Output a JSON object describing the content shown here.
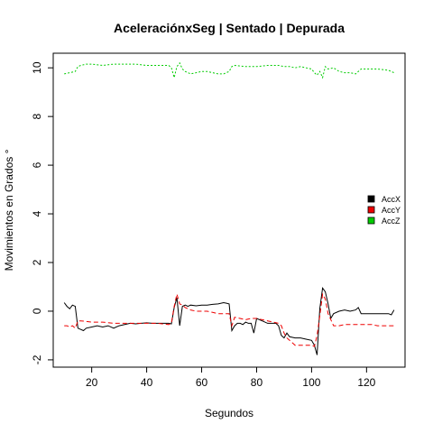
{
  "chart_data": {
    "type": "line",
    "title": "AceleraciónxSeg | Sentado | Depurada",
    "xlabel": "Segundos",
    "ylabel": "Movimientos en Grados °",
    "xlim": [
      6,
      134
    ],
    "ylim": [
      -2.3,
      10.6
    ],
    "xticks": [
      20,
      40,
      60,
      80,
      100,
      120
    ],
    "yticks": [
      -2,
      0,
      2,
      4,
      6,
      8,
      10
    ],
    "grid": false,
    "legend_position": "right",
    "series": [
      {
        "name": "AccX",
        "color": "#000000",
        "dash": "",
        "x": [
          10,
          11,
          12,
          13,
          14,
          15,
          16,
          17,
          18,
          20,
          22,
          24,
          26,
          28,
          30,
          32,
          34,
          36,
          38,
          40,
          42,
          44,
          46,
          48,
          49,
          50,
          51,
          52,
          53,
          54,
          55,
          56,
          58,
          60,
          62,
          64,
          66,
          68,
          69,
          70,
          71,
          72,
          73,
          74,
          75,
          76,
          77,
          78,
          79,
          80,
          82,
          84,
          86,
          87,
          88,
          89,
          90,
          91,
          92,
          94,
          96,
          98,
          100,
          101,
          102,
          103,
          104,
          105,
          106,
          107,
          108,
          110,
          112,
          114,
          116,
          117,
          118,
          120,
          122,
          124,
          126,
          128,
          129,
          130
        ],
        "y": [
          0.35,
          0.2,
          0.1,
          0.25,
          0.2,
          -0.7,
          -0.75,
          -0.8,
          -0.7,
          -0.65,
          -0.6,
          -0.65,
          -0.6,
          -0.7,
          -0.6,
          -0.55,
          -0.5,
          -0.52,
          -0.5,
          -0.48,
          -0.5,
          -0.5,
          -0.5,
          -0.5,
          -0.52,
          0.15,
          0.55,
          -0.6,
          0.2,
          0.25,
          0.2,
          0.25,
          0.22,
          0.25,
          0.25,
          0.28,
          0.3,
          0.35,
          0.33,
          0.3,
          -0.8,
          -0.6,
          -0.5,
          -0.5,
          -0.55,
          -0.45,
          -0.5,
          -0.5,
          -0.9,
          -0.3,
          -0.4,
          -0.5,
          -0.5,
          -0.5,
          -0.6,
          -1.0,
          -1.1,
          -0.9,
          -1.05,
          -1.1,
          -1.1,
          -1.15,
          -1.2,
          -1.4,
          -1.8,
          0.1,
          0.95,
          0.8,
          0.3,
          -0.3,
          -0.1,
          0.0,
          0.05,
          0.0,
          0.05,
          0.15,
          -0.1,
          -0.1,
          -0.1,
          -0.1,
          -0.1,
          -0.1,
          -0.15,
          0.05
        ]
      },
      {
        "name": "AccY",
        "color": "#ee0000",
        "dash": "5,3",
        "x": [
          10,
          11,
          12,
          13,
          14,
          15,
          16,
          18,
          20,
          24,
          28,
          32,
          36,
          40,
          44,
          48,
          49,
          50,
          51,
          52,
          53,
          54,
          56,
          58,
          60,
          62,
          64,
          66,
          68,
          70,
          71,
          72,
          74,
          76,
          78,
          80,
          82,
          84,
          86,
          88,
          89,
          90,
          91,
          92,
          93,
          94,
          96,
          98,
          100,
          101,
          102,
          103,
          104,
          105,
          106,
          108,
          110,
          112,
          114,
          116,
          118,
          120,
          122,
          124,
          126,
          128,
          130
        ],
        "y": [
          -0.6,
          -0.6,
          -0.65,
          -0.6,
          -0.7,
          -0.4,
          -0.4,
          -0.42,
          -0.45,
          -0.45,
          -0.5,
          -0.5,
          -0.5,
          -0.5,
          -0.5,
          -0.55,
          -0.5,
          0.2,
          0.7,
          0.3,
          0.25,
          0.15,
          0.05,
          0.0,
          0.0,
          0.0,
          -0.05,
          -0.1,
          -0.1,
          -0.1,
          -0.6,
          -0.25,
          -0.3,
          -0.35,
          -0.3,
          -0.3,
          -0.35,
          -0.4,
          -0.45,
          -0.5,
          -0.6,
          -0.9,
          -1.1,
          -1.2,
          -1.3,
          -1.4,
          -1.4,
          -1.4,
          -1.4,
          -1.45,
          -1.0,
          -0.2,
          0.7,
          0.5,
          -0.1,
          -0.6,
          -0.6,
          -0.55,
          -0.55,
          -0.55,
          -0.55,
          -0.55,
          -0.55,
          -0.6,
          -0.6,
          -0.6,
          -0.6
        ]
      },
      {
        "name": "AccZ",
        "color": "#00cc00",
        "dash": "2,2",
        "x": [
          10,
          12,
          14,
          15,
          16,
          18,
          20,
          24,
          28,
          32,
          36,
          40,
          44,
          48,
          49,
          50,
          51,
          52,
          53,
          54,
          56,
          58,
          60,
          62,
          64,
          66,
          68,
          69,
          70,
          71,
          72,
          76,
          80,
          84,
          86,
          88,
          90,
          92,
          94,
          96,
          98,
          100,
          101,
          102,
          103,
          104,
          105,
          106,
          108,
          110,
          112,
          114,
          116,
          118,
          120,
          124,
          128,
          130
        ],
        "y": [
          9.75,
          9.8,
          9.85,
          10.05,
          10.1,
          10.15,
          10.15,
          10.1,
          10.15,
          10.15,
          10.15,
          10.1,
          10.1,
          10.1,
          10.0,
          9.6,
          10.05,
          10.2,
          9.95,
          9.85,
          9.75,
          9.8,
          9.85,
          9.85,
          9.8,
          9.75,
          9.75,
          9.8,
          9.85,
          10.05,
          10.1,
          10.05,
          10.05,
          10.1,
          10.1,
          10.1,
          10.05,
          10.05,
          10.0,
          10.05,
          10.0,
          9.95,
          9.8,
          9.7,
          9.85,
          9.6,
          10.05,
          9.95,
          10.0,
          9.85,
          9.8,
          9.8,
          9.75,
          9.95,
          9.95,
          9.95,
          9.9,
          9.8
        ]
      }
    ]
  }
}
